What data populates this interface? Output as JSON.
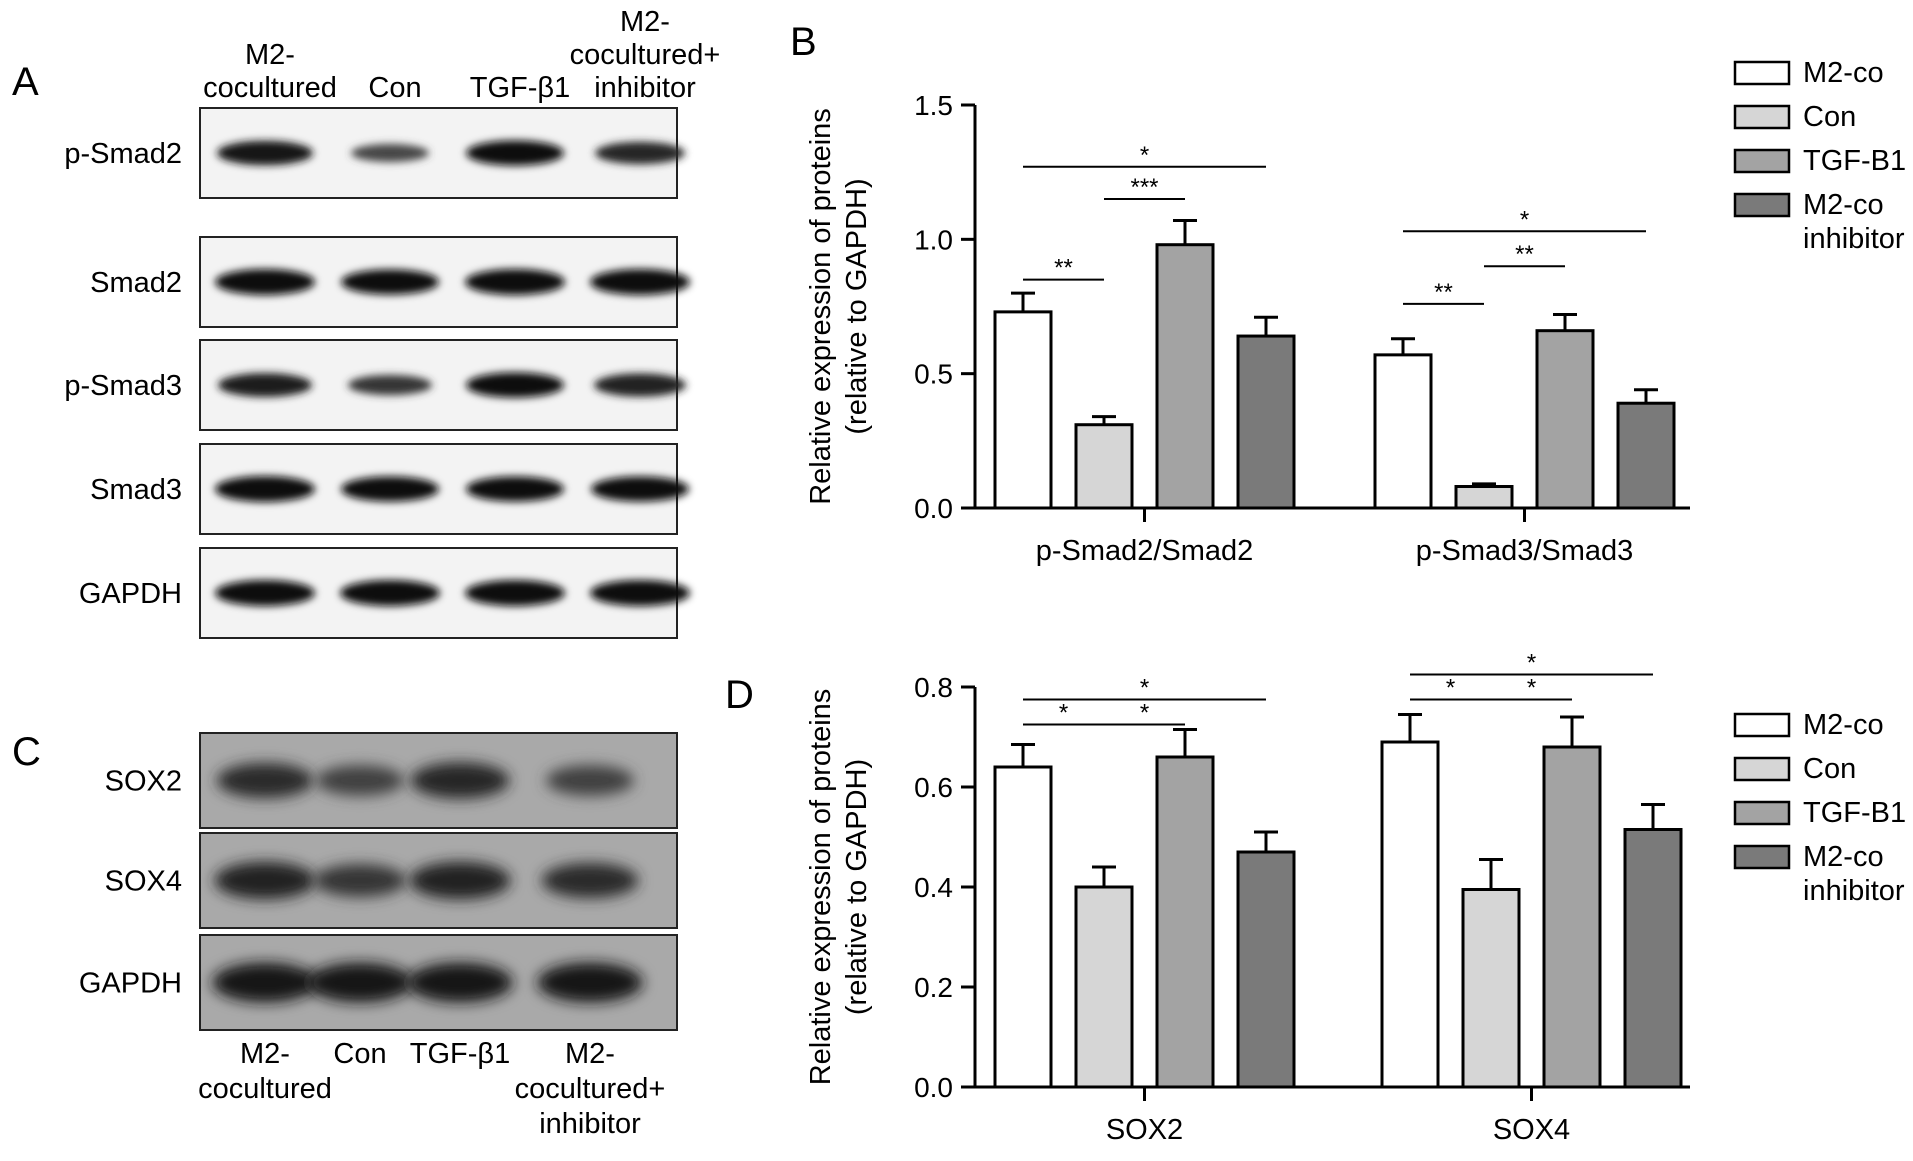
{
  "panel_letters": {
    "A": "A",
    "B": "B",
    "C": "C",
    "D": "D"
  },
  "blot_top": {
    "lanes": [
      "M2-\ncocultured",
      "Con",
      "TGF-β1",
      "M2-\ncocultured+\ninhibitor"
    ],
    "rows": [
      {
        "label": "p-Smad2",
        "intensity": [
          0.9,
          0.45,
          0.95,
          0.75
        ]
      },
      {
        "label": "Smad2",
        "intensity": [
          1.0,
          0.95,
          1.0,
          1.0
        ]
      },
      {
        "label": "p-Smad3",
        "intensity": [
          0.85,
          0.6,
          0.95,
          0.8
        ]
      },
      {
        "label": "Smad3",
        "intensity": [
          1.0,
          0.95,
          0.95,
          0.95
        ]
      },
      {
        "label": "GAPDH",
        "intensity": [
          1.0,
          1.0,
          1.0,
          1.0
        ]
      }
    ]
  },
  "blot_bottom": {
    "lanes": [
      "M2-\ncocultured",
      "Con",
      "TGF-β1",
      "M2-\ncocultured+\ninhibitor"
    ],
    "rows": [
      {
        "label": "SOX2",
        "intensity": [
          0.7,
          0.5,
          0.75,
          0.5
        ]
      },
      {
        "label": "SOX4",
        "intensity": [
          0.8,
          0.6,
          0.8,
          0.7
        ]
      },
      {
        "label": "GAPDH",
        "intensity": [
          0.9,
          0.9,
          0.9,
          0.9
        ]
      }
    ]
  },
  "colors": {
    "M2-co": "#ffffff",
    "Con": "#d6d6d6",
    "TGF-B1": "#a3a3a3",
    "M2-co inhibitor": "#7a7a7a",
    "axis": "#000000",
    "blot_bg": "#f3f3f3",
    "blot_bg_bottom": "#a9a9a9"
  },
  "chart_data": [
    {
      "type": "bar",
      "panel": "B",
      "ylabel": "Relative expression of proteins\n(relative to GAPDH)",
      "ylim": [
        0,
        1.5
      ],
      "yticks": [
        "0.0",
        "0.5",
        "1.0",
        "1.5"
      ],
      "categories": [
        "p-Smad2/Smad2",
        "p-Smad3/Smad3"
      ],
      "legend": [
        "M2-co",
        "Con",
        "TGF-B1",
        "M2-co\ninhibitor"
      ],
      "series": [
        {
          "name": "M2-co",
          "values": [
            0.73,
            0.57
          ],
          "errors": [
            0.07,
            0.06
          ]
        },
        {
          "name": "Con",
          "values": [
            0.31,
            0.08
          ],
          "errors": [
            0.03,
            0.01
          ]
        },
        {
          "name": "TGF-B1",
          "values": [
            0.98,
            0.66
          ],
          "errors": [
            0.09,
            0.06
          ]
        },
        {
          "name": "M2-co\ninhibitor",
          "values": [
            0.64,
            0.39
          ],
          "errors": [
            0.07,
            0.05
          ]
        }
      ],
      "significance": [
        {
          "group": 0,
          "from": 0,
          "to": 1,
          "label": "**",
          "y": 0.85
        },
        {
          "group": 0,
          "from": 1,
          "to": 2,
          "label": "***",
          "y": 1.15
        },
        {
          "group": 0,
          "from": 0,
          "to": 3,
          "label": "*",
          "y": 1.27
        },
        {
          "group": 1,
          "from": 0,
          "to": 1,
          "label": "**",
          "y": 0.76
        },
        {
          "group": 1,
          "from": 1,
          "to": 2,
          "label": "**",
          "y": 0.9
        },
        {
          "group": 1,
          "from": 0,
          "to": 3,
          "label": "*",
          "y": 1.03
        }
      ]
    },
    {
      "type": "bar",
      "panel": "D",
      "ylabel": "Relative expression of proteins\n(relative to GAPDH)",
      "ylim": [
        0,
        0.8
      ],
      "yticks": [
        "0.0",
        "0.2",
        "0.4",
        "0.6",
        "0.8"
      ],
      "categories": [
        "SOX2",
        "SOX4"
      ],
      "legend": [
        "M2-co",
        "Con",
        "TGF-B1",
        "M2-co\ninhibitor"
      ],
      "series": [
        {
          "name": "M2-co",
          "values": [
            0.64,
            0.69
          ],
          "errors": [
            0.045,
            0.055
          ]
        },
        {
          "name": "Con",
          "values": [
            0.4,
            0.395
          ],
          "errors": [
            0.04,
            0.06
          ]
        },
        {
          "name": "TGF-B1",
          "values": [
            0.66,
            0.68
          ],
          "errors": [
            0.055,
            0.06
          ]
        },
        {
          "name": "M2-co\ninhibitor",
          "values": [
            0.47,
            0.515
          ],
          "errors": [
            0.04,
            0.05
          ]
        }
      ],
      "significance": [
        {
          "group": 0,
          "from": 0,
          "to": 1,
          "label": "*",
          "y": 0.725
        },
        {
          "group": 0,
          "from": 1,
          "to": 2,
          "label": "*",
          "y": 0.725
        },
        {
          "group": 0,
          "from": 0,
          "to": 3,
          "label": "*",
          "y": 0.775
        },
        {
          "group": 1,
          "from": 0,
          "to": 1,
          "label": "*",
          "y": 0.775
        },
        {
          "group": 1,
          "from": 1,
          "to": 2,
          "label": "*",
          "y": 0.775
        },
        {
          "group": 1,
          "from": 0,
          "to": 3,
          "label": "*",
          "y": 0.825
        }
      ]
    }
  ]
}
